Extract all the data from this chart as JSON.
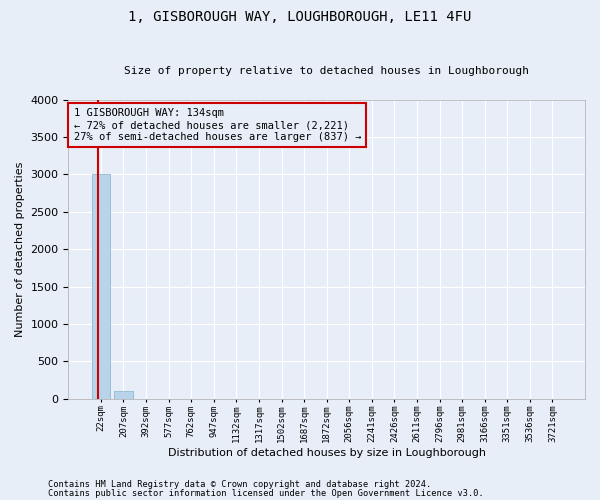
{
  "title": "1, GISBOROUGH WAY, LOUGHBOROUGH, LE11 4FU",
  "subtitle": "Size of property relative to detached houses in Loughborough",
  "xlabel": "Distribution of detached houses by size in Loughborough",
  "ylabel": "Number of detached properties",
  "footnote1": "Contains HM Land Registry data © Crown copyright and database right 2024.",
  "footnote2": "Contains public sector information licensed under the Open Government Licence v3.0.",
  "bar_labels": [
    "22sqm",
    "207sqm",
    "392sqm",
    "577sqm",
    "762sqm",
    "947sqm",
    "1132sqm",
    "1317sqm",
    "1502sqm",
    "1687sqm",
    "1872sqm",
    "2056sqm",
    "2241sqm",
    "2426sqm",
    "2611sqm",
    "2796sqm",
    "2981sqm",
    "3166sqm",
    "3351sqm",
    "3536sqm",
    "3721sqm"
  ],
  "bar_values": [
    3000,
    110,
    0,
    0,
    0,
    0,
    0,
    0,
    0,
    0,
    0,
    0,
    0,
    0,
    0,
    0,
    0,
    0,
    0,
    0,
    0
  ],
  "bar_color": "#b8d4ea",
  "bar_edge_color": "#8ab0cc",
  "property_line_x": -0.12,
  "property_line_color": "#cc0000",
  "ylim": [
    0,
    4000
  ],
  "yticks": [
    0,
    500,
    1000,
    1500,
    2000,
    2500,
    3000,
    3500,
    4000
  ],
  "annotation_title": "1 GISBOROUGH WAY: 134sqm",
  "annotation_line1": "← 72% of detached houses are smaller (2,221)",
  "annotation_line2": "27% of semi-detached houses are larger (837) →",
  "annotation_box_color": "#cc0000",
  "background_color": "#e8eef8",
  "grid_color": "#ffffff",
  "title_fontsize": 10,
  "subtitle_fontsize": 8,
  "ylabel_fontsize": 8,
  "xlabel_fontsize": 8
}
